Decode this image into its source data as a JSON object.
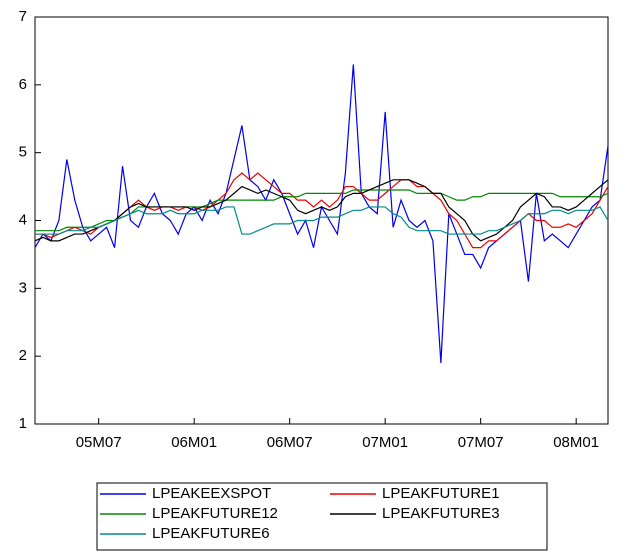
{
  "chart_data": {
    "type": "line",
    "categories": [
      null,
      null,
      null,
      null,
      null,
      null,
      null,
      null,
      "05M07",
      null,
      null,
      null,
      null,
      null,
      null,
      null,
      null,
      null,
      null,
      null,
      "06M01",
      null,
      null,
      null,
      null,
      null,
      null,
      null,
      null,
      null,
      null,
      null,
      "06M07",
      null,
      null,
      null,
      null,
      null,
      null,
      null,
      null,
      null,
      null,
      null,
      "07M01",
      null,
      null,
      null,
      null,
      null,
      null,
      null,
      null,
      null,
      null,
      null,
      "07M07",
      null,
      null,
      null,
      null,
      null,
      null,
      null,
      null,
      null,
      null,
      null,
      "08M01",
      null,
      null,
      null,
      null
    ],
    "series": [
      {
        "name": "LPEAKEEXSPOT",
        "color": "#0000ee",
        "values": [
          3.6,
          3.8,
          3.7,
          4.0,
          4.9,
          4.3,
          3.9,
          3.7,
          3.8,
          3.9,
          3.6,
          4.8,
          4.0,
          3.9,
          4.2,
          4.4,
          4.1,
          4.0,
          3.8,
          4.1,
          4.2,
          4.0,
          4.3,
          4.1,
          4.4,
          4.9,
          5.4,
          4.6,
          4.5,
          4.3,
          4.6,
          4.4,
          4.1,
          3.8,
          4.0,
          3.6,
          4.2,
          4.0,
          3.8,
          4.7,
          6.3,
          4.4,
          4.2,
          4.1,
          5.6,
          3.9,
          4.3,
          4.0,
          3.9,
          4.0,
          3.7,
          1.9,
          4.1,
          3.8,
          3.5,
          3.5,
          3.3,
          3.6,
          3.7,
          3.8,
          3.9,
          4.0,
          3.1,
          4.4,
          3.7,
          3.8,
          3.7,
          3.6,
          3.8,
          4.0,
          4.2,
          4.3,
          5.1
        ]
      },
      {
        "name": "LPEAKFUTURE1",
        "color": "#ee0000",
        "values": [
          3.8,
          3.8,
          3.75,
          3.8,
          3.85,
          3.9,
          3.85,
          3.8,
          3.9,
          3.95,
          4.0,
          4.1,
          4.2,
          4.3,
          4.2,
          4.15,
          4.2,
          4.2,
          4.15,
          4.2,
          4.2,
          4.15,
          4.2,
          4.3,
          4.4,
          4.6,
          4.7,
          4.6,
          4.7,
          4.6,
          4.5,
          4.4,
          4.4,
          4.3,
          4.3,
          4.2,
          4.3,
          4.2,
          4.3,
          4.5,
          4.5,
          4.4,
          4.3,
          4.3,
          4.4,
          4.5,
          4.6,
          4.6,
          4.5,
          4.5,
          4.4,
          4.3,
          4.1,
          4.0,
          3.8,
          3.6,
          3.6,
          3.7,
          3.7,
          3.8,
          3.9,
          4.0,
          4.1,
          4.0,
          4.0,
          3.9,
          3.9,
          3.95,
          3.9,
          4.0,
          4.1,
          4.3,
          4.5
        ]
      },
      {
        "name": "LPEAKFUTURE12",
        "color": "#008800",
        "values": [
          3.85,
          3.85,
          3.85,
          3.85,
          3.9,
          3.9,
          3.9,
          3.9,
          3.95,
          4.0,
          4.0,
          4.05,
          4.1,
          4.2,
          4.2,
          4.2,
          4.2,
          4.2,
          4.2,
          4.2,
          4.2,
          4.2,
          4.25,
          4.3,
          4.3,
          4.3,
          4.3,
          4.3,
          4.3,
          4.3,
          4.3,
          4.35,
          4.35,
          4.35,
          4.4,
          4.4,
          4.4,
          4.4,
          4.4,
          4.4,
          4.45,
          4.45,
          4.45,
          4.45,
          4.45,
          4.45,
          4.45,
          4.45,
          4.4,
          4.4,
          4.4,
          4.4,
          4.35,
          4.3,
          4.3,
          4.35,
          4.35,
          4.4,
          4.4,
          4.4,
          4.4,
          4.4,
          4.4,
          4.4,
          4.4,
          4.4,
          4.35,
          4.35,
          4.35,
          4.35,
          4.35,
          4.35,
          4.4
        ]
      },
      {
        "name": "LPEAKFUTURE3",
        "color": "#000000",
        "values": [
          3.7,
          3.75,
          3.7,
          3.7,
          3.75,
          3.8,
          3.8,
          3.85,
          3.9,
          3.95,
          4.0,
          4.1,
          4.2,
          4.25,
          4.2,
          4.2,
          4.2,
          4.2,
          4.2,
          4.2,
          4.15,
          4.2,
          4.2,
          4.25,
          4.3,
          4.4,
          4.5,
          4.45,
          4.4,
          4.45,
          4.4,
          4.35,
          4.3,
          4.15,
          4.1,
          4.15,
          4.2,
          4.15,
          4.2,
          4.35,
          4.4,
          4.4,
          4.45,
          4.5,
          4.55,
          4.6,
          4.6,
          4.6,
          4.55,
          4.5,
          4.4,
          4.4,
          4.2,
          4.1,
          4.0,
          3.8,
          3.7,
          3.75,
          3.8,
          3.9,
          4.0,
          4.2,
          4.3,
          4.4,
          4.35,
          4.2,
          4.2,
          4.15,
          4.2,
          4.3,
          4.4,
          4.5,
          4.6
        ]
      },
      {
        "name": "LPEAKFUTURE6",
        "color": "#008b8b",
        "values": [
          3.8,
          3.8,
          3.8,
          3.8,
          3.85,
          3.85,
          3.85,
          3.9,
          3.9,
          3.95,
          4.0,
          4.05,
          4.1,
          4.15,
          4.1,
          4.1,
          4.1,
          4.15,
          4.1,
          4.1,
          4.1,
          4.15,
          4.15,
          4.15,
          4.2,
          4.2,
          3.8,
          3.8,
          3.85,
          3.9,
          3.95,
          3.95,
          3.95,
          4.0,
          4.0,
          4.0,
          4.05,
          4.05,
          4.05,
          4.1,
          4.15,
          4.15,
          4.2,
          4.2,
          4.2,
          4.1,
          4.05,
          3.9,
          3.85,
          3.85,
          3.85,
          3.85,
          3.8,
          3.8,
          3.8,
          3.8,
          3.8,
          3.85,
          3.85,
          3.9,
          3.95,
          4.0,
          4.1,
          4.1,
          4.1,
          4.15,
          4.15,
          4.1,
          4.15,
          4.15,
          4.15,
          4.2,
          4.0
        ]
      }
    ],
    "ylim": [
      1,
      7
    ],
    "yticks": [
      1,
      2,
      3,
      4,
      5,
      6,
      7
    ],
    "grid": false,
    "legend": "bottom"
  }
}
